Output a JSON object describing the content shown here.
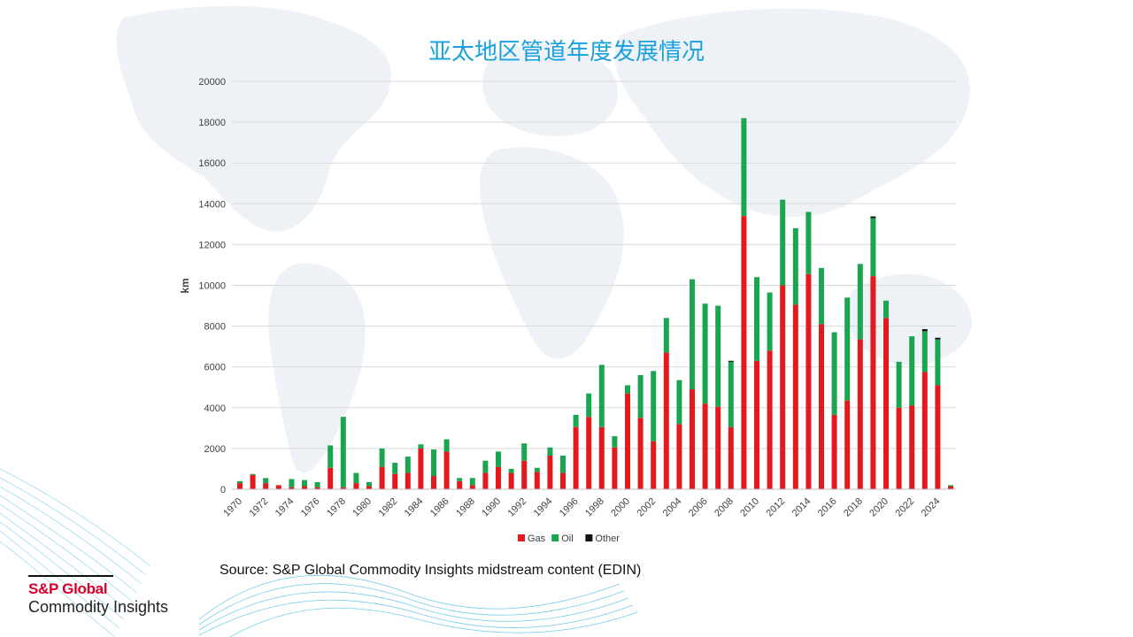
{
  "slide": {
    "title": "亚太地区管道年度发展情况",
    "source": "Source: S&P Global Commodity Insights midstream content (EDIN)"
  },
  "logo": {
    "line1": "S&P Global",
    "line2": "Commodity Insights"
  },
  "colors": {
    "title": "#1aa1dd",
    "gas": "#e31a1c",
    "oil": "#1aa650",
    "other": "#111111",
    "logo_red": "#d6002a"
  },
  "chart_data": {
    "type": "bar",
    "stacked": true,
    "title": "",
    "xlabel": "",
    "ylabel": "km",
    "ylim": [
      0,
      20000
    ],
    "yticks": [
      0,
      2000,
      4000,
      6000,
      8000,
      10000,
      12000,
      14000,
      16000,
      18000,
      20000
    ],
    "x_tick_labels": [
      "1970",
      "1972",
      "1974",
      "1976",
      "1978",
      "1980",
      "1982",
      "1984",
      "1986",
      "1988",
      "1990",
      "1992",
      "1994",
      "1996",
      "1998",
      "2000",
      "2002",
      "2004",
      "2006",
      "2008",
      "2010",
      "2012",
      "2014",
      "2016",
      "2018",
      "2020",
      "2022",
      "2024"
    ],
    "grid": true,
    "legend_position": "bottom",
    "categories": [
      "1970",
      "1971",
      "1972",
      "1973",
      "1974",
      "1975",
      "1976",
      "1977",
      "1978",
      "1979",
      "1980",
      "1981",
      "1982",
      "1983",
      "1984",
      "1985",
      "1986",
      "1987",
      "1988",
      "1989",
      "1990",
      "1991",
      "1992",
      "1993",
      "1994",
      "1995",
      "1996",
      "1997",
      "1998",
      "1999",
      "2000",
      "2001",
      "2002",
      "2003",
      "2004",
      "2005",
      "2006",
      "2007",
      "2008",
      "2009",
      "2010",
      "2011",
      "2012",
      "2013",
      "2014",
      "2015",
      "2016",
      "2017",
      "2018",
      "2019",
      "2020",
      "2021",
      "2022",
      "2023",
      "2024",
      "2025"
    ],
    "series": [
      {
        "name": "Gas",
        "color": "#e31a1c",
        "values": [
          300,
          700,
          300,
          200,
          100,
          150,
          100,
          1050,
          100,
          300,
          150,
          1100,
          750,
          800,
          2000,
          650,
          1850,
          400,
          200,
          800,
          1100,
          800,
          1400,
          850,
          1650,
          800,
          3050,
          3550,
          3050,
          2050,
          4700,
          3500,
          2350,
          6700,
          3200,
          4900,
          4200,
          4050,
          3050,
          13400,
          6300,
          6800,
          10000,
          9050,
          10550,
          8100,
          3650,
          4350,
          7350,
          10450,
          8400,
          4000,
          4100,
          5750,
          5100,
          150
        ]
      },
      {
        "name": "Oil",
        "color": "#1aa650",
        "values": [
          100,
          50,
          250,
          0,
          400,
          300,
          250,
          1100,
          3450,
          500,
          200,
          900,
          550,
          800,
          200,
          1300,
          600,
          150,
          350,
          600,
          750,
          200,
          850,
          200,
          400,
          850,
          600,
          1150,
          3050,
          550,
          400,
          2100,
          3450,
          1700,
          2150,
          5400,
          4900,
          4950,
          3200,
          4800,
          4100,
          2850,
          4200,
          3750,
          3050,
          2750,
          4050,
          5050,
          3700,
          2850,
          850,
          2250,
          3400,
          2000,
          2250,
          50
        ]
      },
      {
        "name": "Other",
        "color": "#111111",
        "values": [
          0,
          0,
          0,
          0,
          0,
          0,
          0,
          0,
          0,
          0,
          0,
          0,
          0,
          0,
          0,
          0,
          0,
          0,
          0,
          0,
          0,
          0,
          0,
          0,
          0,
          0,
          0,
          0,
          0,
          0,
          0,
          0,
          0,
          0,
          0,
          0,
          0,
          0,
          50,
          0,
          0,
          0,
          0,
          0,
          0,
          0,
          0,
          0,
          0,
          80,
          0,
          0,
          0,
          100,
          80,
          0
        ]
      }
    ]
  }
}
